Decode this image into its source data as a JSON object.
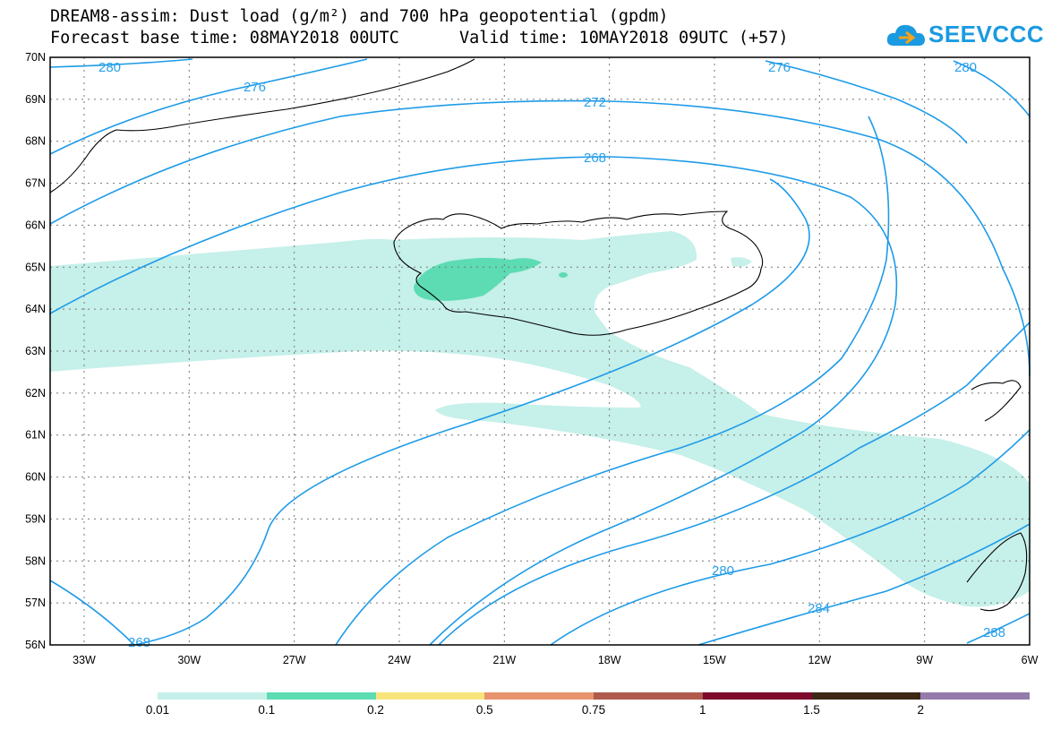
{
  "header": {
    "title_line1": "DREAM8-assim: Dust load (g/m²) and 700 hPa geopotential (gpdm)",
    "base_time": "Forecast base time: 08MAY2018 00UTC",
    "valid_time": "Valid time: 10MAY2018 09UTC (+57)"
  },
  "logo": {
    "text": "SEEVCCC",
    "icon": "cloud-logo-icon",
    "color": "#1a9ae0"
  },
  "map": {
    "lat_labels": [
      "70N",
      "69N",
      "68N",
      "67N",
      "66N",
      "65N",
      "64N",
      "63N",
      "62N",
      "61N",
      "60N",
      "59N",
      "58N",
      "57N",
      "56N"
    ],
    "lon_labels": [
      "33W",
      "30W",
      "27W",
      "24W",
      "21W",
      "18W",
      "15W",
      "12W",
      "9W",
      "6W"
    ],
    "contour_labels": [
      "280",
      "276",
      "272",
      "268",
      "276",
      "280",
      "268",
      "280",
      "284",
      "288"
    ],
    "contour_color": "#1e9be8",
    "dust_low_color": "#c6f0ea",
    "dust_mid_color": "#5ddcb3"
  },
  "colorbar": {
    "colors": [
      "#c6f0ea",
      "#5ddcb3",
      "#f7e57b",
      "#e8936d",
      "#b05a4e",
      "#7d0a2c",
      "#3c2814",
      "#957bab"
    ],
    "labels": [
      "0.01",
      "0.1",
      "0.2",
      "0.5",
      "0.75",
      "1",
      "1.5",
      "2"
    ]
  }
}
